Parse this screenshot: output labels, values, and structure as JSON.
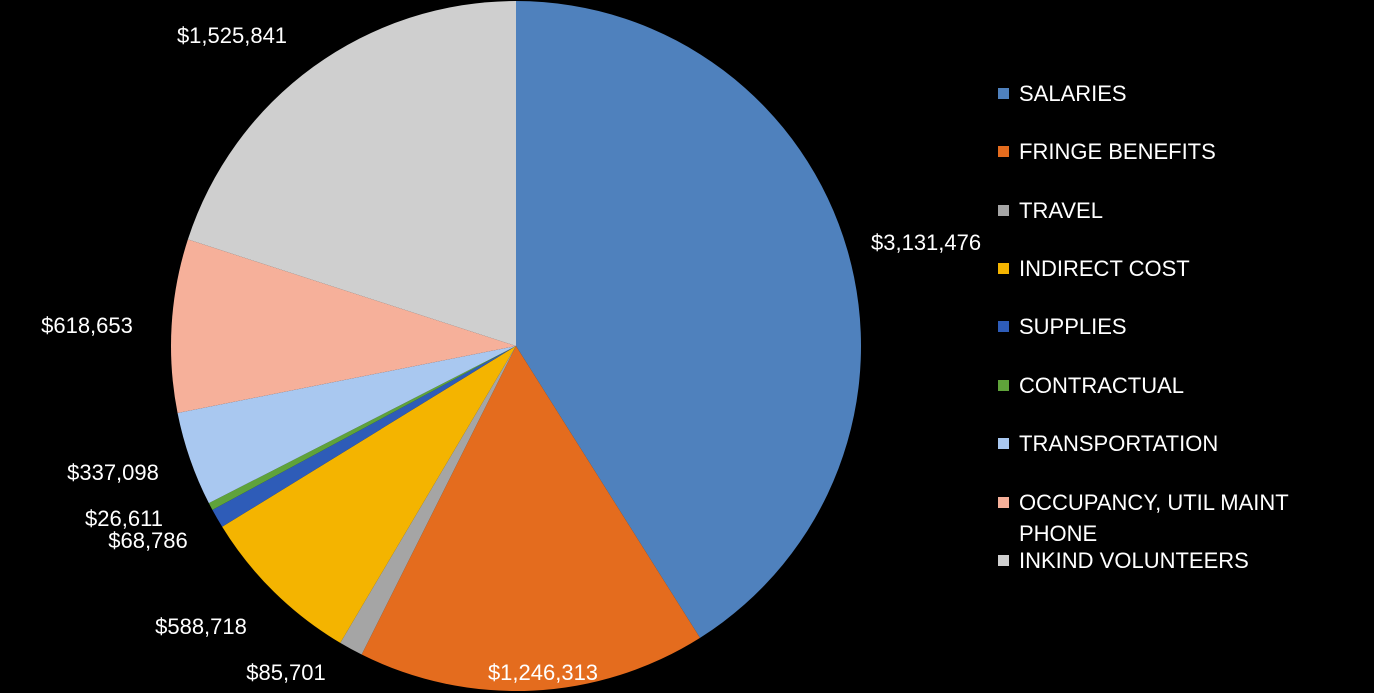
{
  "chart_data": {
    "type": "pie",
    "title": "",
    "slices": [
      {
        "label": "SALARIES",
        "value": 3131476,
        "display": "$3,131,476",
        "color": "#4F81BD"
      },
      {
        "label": "FRINGE BENEFITS",
        "value": 1246313,
        "display": "$1,246,313",
        "color": "#E46C1E"
      },
      {
        "label": "TRAVEL",
        "value": 85701,
        "display": "$85,701",
        "color": "#A5A5A5"
      },
      {
        "label": "INDIRECT COST",
        "value": 588718,
        "display": "$588,718",
        "color": "#F4B400"
      },
      {
        "label": "SUPPLIES",
        "value": 68786,
        "display": "$68,786",
        "color": "#2E5CB8"
      },
      {
        "label": "CONTRACTUAL",
        "value": 26611,
        "display": "$26,611",
        "color": "#5FA33A"
      },
      {
        "label": "TRANSPORTATION",
        "value": 337098,
        "display": "$337,098",
        "color": "#A9C8F0"
      },
      {
        "label": "OCCUPANCY, UTIL MAINT PHONE",
        "value": 618653,
        "display": "$618,653",
        "color": "#F6B09A"
      },
      {
        "label": "INKIND VOLUNTEERS",
        "value": 1525841,
        "display": "$1,525,841",
        "color": "#CFCFCF"
      }
    ],
    "legend_placement": "right"
  },
  "legend": {
    "items": [
      {
        "label_line1": "SALARIES",
        "label_line2": "",
        "color": "#4F81BD"
      },
      {
        "label_line1": "FRINGE BENEFITS",
        "label_line2": "",
        "color": "#E46C1E"
      },
      {
        "label_line1": "TRAVEL",
        "label_line2": "",
        "color": "#A5A5A5"
      },
      {
        "label_line1": "INDIRECT COST",
        "label_line2": "",
        "color": "#F4B400"
      },
      {
        "label_line1": "SUPPLIES",
        "label_line2": "",
        "color": "#2E5CB8"
      },
      {
        "label_line1": "CONTRACTUAL",
        "label_line2": "",
        "color": "#5FA33A"
      },
      {
        "label_line1": "TRANSPORTATION",
        "label_line2": "",
        "color": "#A9C8F0"
      },
      {
        "label_line1": "OCCUPANCY, UTIL MAINT",
        "label_line2": "PHONE",
        "color": "#F6B09A"
      },
      {
        "label_line1": "INKIND VOLUNTEERS",
        "label_line2": "",
        "color": "#CFCFCF"
      }
    ]
  }
}
